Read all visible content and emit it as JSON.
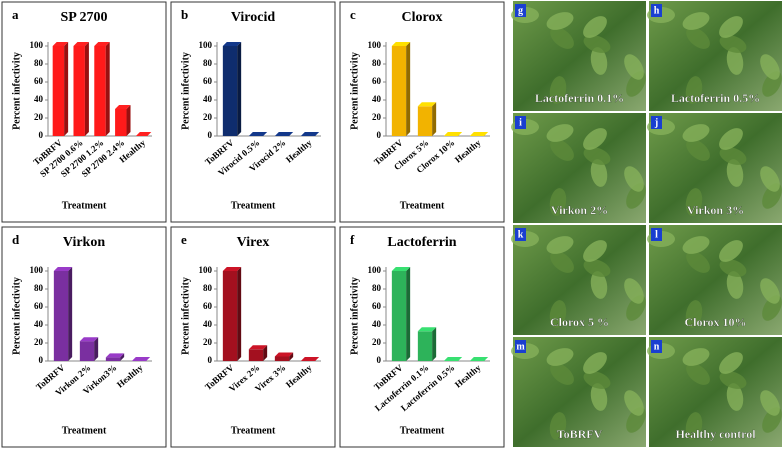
{
  "chart_data": [
    {
      "type": "bar",
      "label": "a",
      "title": "SP 2700",
      "ylabel": "Percent infectivity",
      "xlabel": "Treatment",
      "categories": [
        "ToBRFV",
        "SP 2700 0.6%",
        "SP 2700 1.2%",
        "SP 2700 2.4%",
        "Healthy"
      ],
      "values": [
        100,
        100,
        100,
        30,
        0
      ],
      "color": "#ff1a1a",
      "ylim": [
        0,
        100
      ],
      "yticks": [
        0,
        20,
        40,
        60,
        80,
        100
      ],
      "grid": false
    },
    {
      "type": "bar",
      "label": "b",
      "title": "Virocid",
      "ylabel": "Percent infectivity",
      "xlabel": "Treatment",
      "categories": [
        "ToBRFV",
        "Virocid 0.5%",
        "Virocid 2%",
        "Healthy"
      ],
      "values": [
        100,
        0,
        0,
        0
      ],
      "color": "#0f2d6e",
      "ylim": [
        0,
        100
      ],
      "yticks": [
        0,
        20,
        40,
        60,
        80,
        100
      ],
      "grid": false
    },
    {
      "type": "bar",
      "label": "c",
      "title": "Clorox",
      "ylabel": "Percent infectivity",
      "xlabel": "Treatment",
      "categories": [
        "ToBRFV",
        "Clorox 5%",
        "Clorox 10%",
        "Healthy"
      ],
      "values": [
        100,
        33,
        0,
        0
      ],
      "color": "#f2b300",
      "ylim": [
        0,
        100
      ],
      "yticks": [
        0,
        20,
        40,
        60,
        80,
        100
      ],
      "grid": false
    },
    {
      "type": "bar",
      "label": "d",
      "title": "Virkon",
      "ylabel": "Percent infectivity",
      "xlabel": "Treatment",
      "categories": [
        "ToBRFV",
        "Virkon 2%",
        "Virkon3%",
        "Healthy"
      ],
      "values": [
        100,
        22,
        4,
        0
      ],
      "color": "#7a2fa0",
      "ylim": [
        0,
        100
      ],
      "yticks": [
        0,
        20,
        40,
        60,
        80,
        100
      ],
      "grid": false
    },
    {
      "type": "bar",
      "label": "e",
      "title": "Virex",
      "ylabel": "Percent infectivity",
      "xlabel": "Treatment",
      "categories": [
        "ToBRFV",
        "Virex 2%",
        "Virex 3%",
        "Healthy"
      ],
      "values": [
        100,
        13,
        5,
        0
      ],
      "color": "#a3101f",
      "ylim": [
        0,
        100
      ],
      "yticks": [
        0,
        20,
        40,
        60,
        80,
        100
      ],
      "grid": false
    },
    {
      "type": "bar",
      "label": "f",
      "title": "Lactoferrin",
      "ylabel": "Percent infectivity",
      "xlabel": "Treatment",
      "categories": [
        "ToBRFV",
        "Lactoferrin 0.1%",
        "Lactoferrin 0.5%",
        "Healthy"
      ],
      "values": [
        100,
        33,
        0,
        0
      ],
      "color": "#2db35a",
      "ylim": [
        0,
        100
      ],
      "yticks": [
        0,
        20,
        40,
        60,
        80,
        100
      ],
      "grid": false
    }
  ],
  "photos": [
    {
      "label": "g",
      "caption": "Lactoferrin 0.1%"
    },
    {
      "label": "h",
      "caption": "Lactoferrin 0.5%"
    },
    {
      "label": "i",
      "caption": "Virkon 2%"
    },
    {
      "label": "j",
      "caption": "Virkon 3%"
    },
    {
      "label": "k",
      "caption": "Clorox 5 %"
    },
    {
      "label": "l",
      "caption": "Clorox 10%"
    },
    {
      "label": "m",
      "caption": "ToBRFV"
    },
    {
      "label": "n",
      "caption": "Healthy control"
    }
  ]
}
